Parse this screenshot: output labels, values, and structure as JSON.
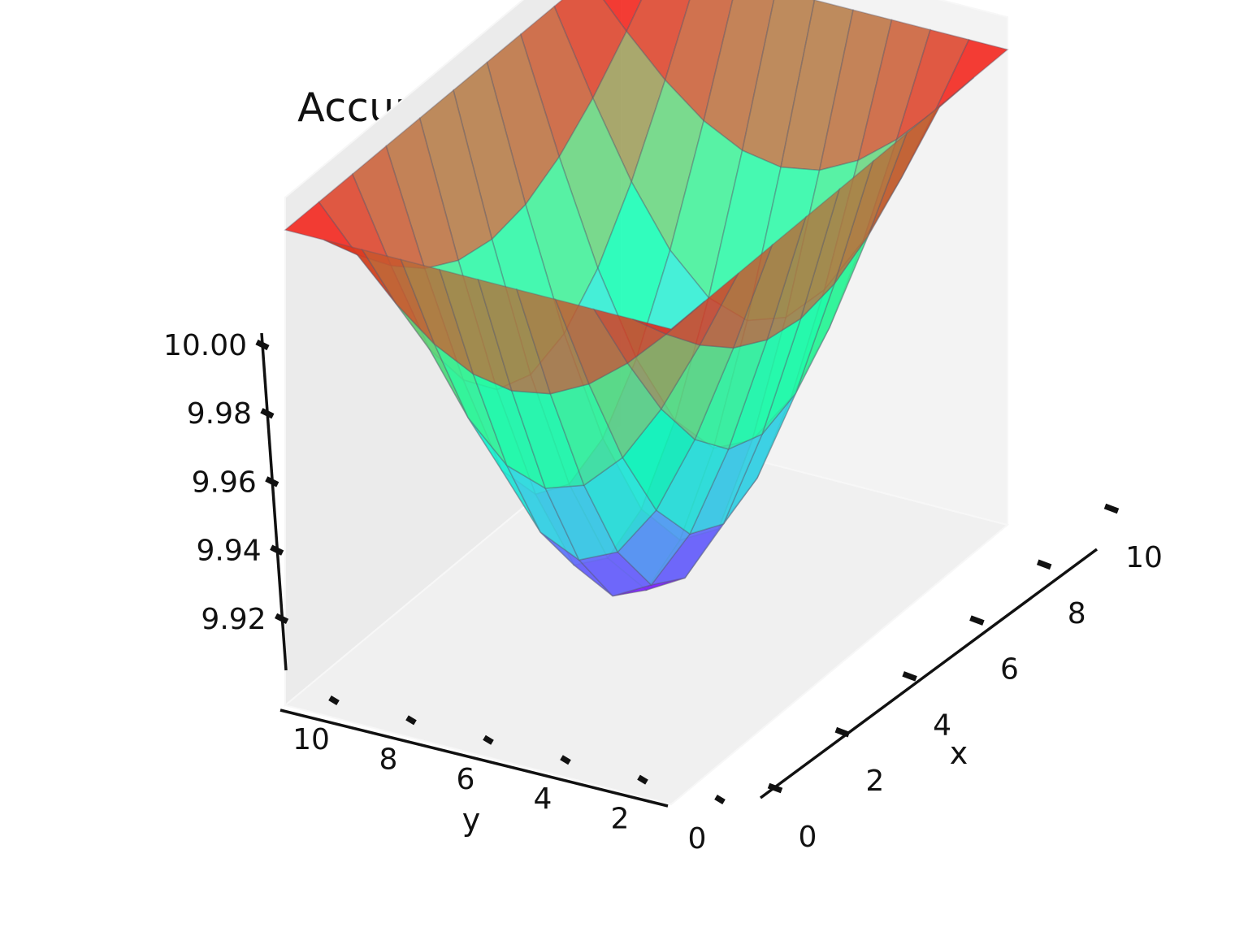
{
  "chart_data": {
    "type": "surface-3d",
    "title": "Accuracy: 0.98%, 28 relaxations",
    "xlabel": "x",
    "ylabel": "y",
    "zlabel": "",
    "x": [
      0,
      1,
      2,
      3,
      4,
      5,
      6,
      7,
      8,
      9,
      10
    ],
    "y": [
      0,
      1,
      2,
      3,
      4,
      5,
      6,
      7,
      8,
      9,
      10
    ],
    "z_function": "10 - 0.09 * sin(pi*x/10) * sin(pi*y/10)",
    "xlim": [
      0,
      10
    ],
    "ylim": [
      0,
      10
    ],
    "zlim": [
      9.905,
      10.0
    ],
    "x_ticks": [
      "0",
      "2",
      "4",
      "6",
      "8",
      "10"
    ],
    "y_ticks": [
      "0",
      "2",
      "4",
      "6",
      "8",
      "10"
    ],
    "z_ticks": [
      "9.92",
      "9.94",
      "9.96",
      "9.98",
      "10.00"
    ],
    "colormap": "rainbow",
    "grid": true,
    "style": "xkcd"
  }
}
